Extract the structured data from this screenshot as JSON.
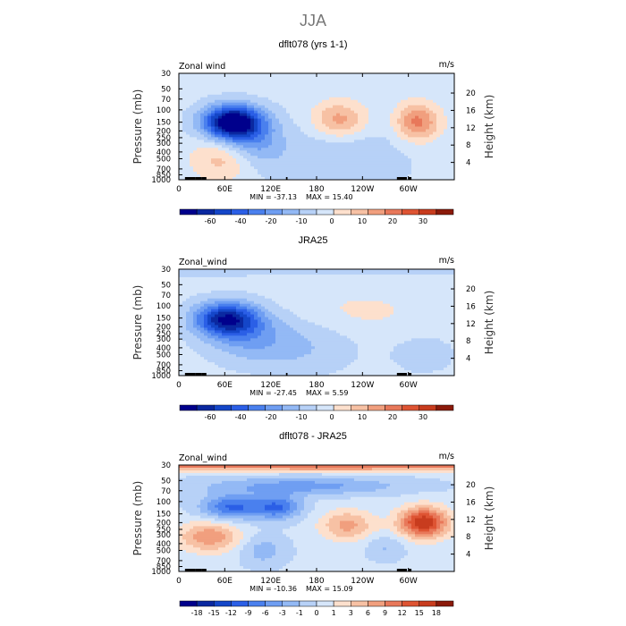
{
  "page": {
    "title": "JJA"
  },
  "chart_data": [
    {
      "type": "heatmap",
      "title": "dflt078 (yrs 1-1)",
      "variable": "Zonal wind",
      "units": "m/s",
      "ylabel": "Pressure (mb)",
      "y2label": "Height (km)",
      "xticks": [
        "0",
        "60E",
        "120E",
        "180",
        "120W",
        "60W"
      ],
      "xtick_values": [
        0,
        60,
        120,
        180,
        240,
        300
      ],
      "xlim": [
        0,
        360
      ],
      "yticks": [
        "30",
        "50",
        "70",
        "100",
        "150",
        "200",
        "250",
        "300",
        "400",
        "500",
        "700",
        "850",
        "1000"
      ],
      "ytick_values": [
        30,
        50,
        70,
        100,
        150,
        200,
        250,
        300,
        400,
        500,
        700,
        850,
        1000
      ],
      "ylim": [
        1000,
        30
      ],
      "y2ticks": [
        "4",
        "8",
        "12",
        "16",
        "20"
      ],
      "y2tick_values": [
        4,
        8,
        12,
        16,
        20
      ],
      "min_label": "MIN = -37.13",
      "max_label": "MAX = 15.40",
      "colorbar": {
        "labels": [
          "-60",
          "-40",
          "-20",
          "-10",
          "0",
          "10",
          "20",
          "30"
        ],
        "colors": [
          "#00008c",
          "#0a28a0",
          "#1446c8",
          "#2b5fe6",
          "#4a80ee",
          "#6f9ef2",
          "#93b9f5",
          "#b7d1f7",
          "#d6e6fa",
          "#fde0cd",
          "#f7c1a4",
          "#f19f7e",
          "#e8785a",
          "#de5433",
          "#c83c1e",
          "#8b1a0a"
        ]
      },
      "field": {
        "base": 1.5,
        "blobs": [
          {
            "lon": 70,
            "p": 150,
            "amp": -34,
            "wlon": 38,
            "wp": 0.55
          },
          {
            "lon": 95,
            "p": 300,
            "amp": -10,
            "wlon": 40,
            "wp": 0.8
          },
          {
            "lon": 210,
            "p": 500,
            "amp": -5,
            "wlon": 90,
            "wp": 1.2
          },
          {
            "lon": 210,
            "p": 140,
            "amp": 12,
            "wlon": 35,
            "wp": 0.6
          },
          {
            "lon": 312,
            "p": 150,
            "amp": 15,
            "wlon": 28,
            "wp": 0.6
          },
          {
            "lon": 60,
            "p": 500,
            "amp": 9,
            "wlon": 40,
            "wp": 0.7
          }
        ]
      }
    },
    {
      "type": "heatmap",
      "title": "JRA25",
      "variable": "Zonal_wind",
      "units": "m/s",
      "ylabel": "Pressure (mb)",
      "y2label": "Height (km)",
      "xticks": [
        "0",
        "60E",
        "120E",
        "180",
        "120W",
        "60W"
      ],
      "xtick_values": [
        0,
        60,
        120,
        180,
        240,
        300
      ],
      "xlim": [
        0,
        360
      ],
      "yticks": [
        "30",
        "50",
        "70",
        "100",
        "150",
        "200",
        "250",
        "300",
        "400",
        "500",
        "700",
        "850",
        "1000"
      ],
      "ytick_values": [
        30,
        50,
        70,
        100,
        150,
        200,
        250,
        300,
        400,
        500,
        700,
        850,
        1000
      ],
      "ylim": [
        1000,
        30
      ],
      "y2ticks": [
        "4",
        "8",
        "12",
        "16",
        "20"
      ],
      "y2tick_values": [
        4,
        8,
        12,
        16,
        20
      ],
      "min_label": "MIN = -27.45",
      "max_label": "MAX = 5.59",
      "colorbar": {
        "labels": [
          "-60",
          "-40",
          "-20",
          "-10",
          "0",
          "10",
          "20",
          "30"
        ],
        "colors": [
          "#00008c",
          "#0a28a0",
          "#1446c8",
          "#2b5fe6",
          "#4a80ee",
          "#6f9ef2",
          "#93b9f5",
          "#b7d1f7",
          "#d6e6fa",
          "#fde0cd",
          "#f7c1a4",
          "#f19f7e",
          "#e8785a",
          "#de5433",
          "#c83c1e",
          "#8b1a0a"
        ]
      },
      "field": {
        "base": 1.5,
        "blobs": [
          {
            "lon": 62,
            "p": 155,
            "amp": -26,
            "wlon": 42,
            "wp": 0.55
          },
          {
            "lon": 90,
            "p": 280,
            "amp": -8,
            "wlon": 55,
            "wp": 0.8
          },
          {
            "lon": 160,
            "p": 400,
            "amp": -5,
            "wlon": 70,
            "wp": 0.9
          },
          {
            "lon": 30,
            "p": 30,
            "amp": -5,
            "wlon": 400,
            "wp": 0.2
          },
          {
            "lon": 240,
            "p": 120,
            "amp": 3,
            "wlon": 80,
            "wp": 0.7
          },
          {
            "lon": 320,
            "p": 500,
            "amp": -4,
            "wlon": 40,
            "wp": 0.6
          }
        ]
      }
    },
    {
      "type": "heatmap",
      "title": "dflt078 - JRA25",
      "variable": "Zonal_wind",
      "units": "m/s",
      "ylabel": "Pressure (mb)",
      "y2label": "Height (km)",
      "xticks": [
        "0",
        "60E",
        "120E",
        "180",
        "120W",
        "60W"
      ],
      "xtick_values": [
        0,
        60,
        120,
        180,
        240,
        300
      ],
      "xlim": [
        0,
        360
      ],
      "yticks": [
        "30",
        "50",
        "70",
        "100",
        "150",
        "200",
        "250",
        "300",
        "400",
        "500",
        "700",
        "850",
        "1000"
      ],
      "ytick_values": [
        30,
        50,
        70,
        100,
        150,
        200,
        250,
        300,
        400,
        500,
        700,
        850,
        1000
      ],
      "ylim": [
        1000,
        30
      ],
      "y2ticks": [
        "4",
        "8",
        "12",
        "16",
        "20"
      ],
      "y2tick_values": [
        4,
        8,
        12,
        16,
        20
      ],
      "min_label": "MIN = -10.36",
      "max_label": "MAX = 15.09",
      "colorbar": {
        "labels": [
          "-18",
          "-15",
          "-12",
          "-9",
          "-6",
          "-3",
          "-1",
          "0",
          "1",
          "3",
          "6",
          "9",
          "12",
          "15",
          "18"
        ],
        "colors": [
          "#00008c",
          "#0a28a0",
          "#1446c8",
          "#2b5fe6",
          "#4a80ee",
          "#6f9ef2",
          "#93b9f5",
          "#b7d1f7",
          "#d6e6fa",
          "#fde0cd",
          "#f7c1a4",
          "#f19f7e",
          "#e8785a",
          "#de5433",
          "#c83c1e",
          "#8b1a0a"
        ]
      },
      "field": {
        "base": 0.5,
        "blobs": [
          {
            "lon": 180,
            "p": 30,
            "amp": 11,
            "wlon": 600,
            "wp": 0.18
          },
          {
            "lon": 160,
            "p": 60,
            "amp": -6,
            "wlon": 130,
            "wp": 0.3
          },
          {
            "lon": 70,
            "p": 120,
            "amp": -10,
            "wlon": 40,
            "wp": 0.4
          },
          {
            "lon": 130,
            "p": 120,
            "amp": -9,
            "wlon": 30,
            "wp": 0.4
          },
          {
            "lon": 220,
            "p": 220,
            "amp": 7,
            "wlon": 35,
            "wp": 0.5
          },
          {
            "lon": 320,
            "p": 200,
            "amp": 15,
            "wlon": 32,
            "wp": 0.5
          },
          {
            "lon": 40,
            "p": 320,
            "amp": 8,
            "wlon": 40,
            "wp": 0.5
          },
          {
            "lon": 110,
            "p": 500,
            "amp": -4,
            "wlon": 30,
            "wp": 0.5
          },
          {
            "lon": 270,
            "p": 450,
            "amp": -3,
            "wlon": 25,
            "wp": 0.4
          }
        ]
      }
    }
  ]
}
